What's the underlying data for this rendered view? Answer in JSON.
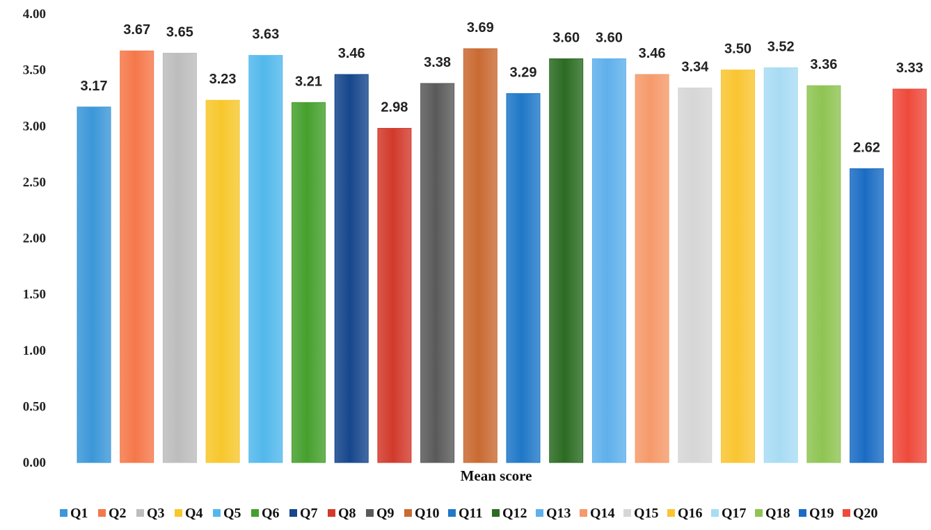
{
  "chart_data": {
    "type": "bar",
    "xlabel": "Mean score",
    "ylabel": "",
    "ylim": [
      0,
      4
    ],
    "yticks": [
      "0.00",
      "0.50",
      "1.00",
      "1.50",
      "2.00",
      "2.50",
      "3.00",
      "3.50",
      "4.00"
    ],
    "grid": false,
    "legend_position": "bottom",
    "categories": [
      "Q1",
      "Q2",
      "Q3",
      "Q4",
      "Q5",
      "Q6",
      "Q7",
      "Q8",
      "Q9",
      "Q10",
      "Q11",
      "Q12",
      "Q13",
      "Q14",
      "Q15",
      "Q16",
      "Q17",
      "Q18",
      "Q19",
      "Q20"
    ],
    "values": [
      3.17,
      3.67,
      3.65,
      3.23,
      3.63,
      3.21,
      3.46,
      2.98,
      3.38,
      3.69,
      3.29,
      3.6,
      3.6,
      3.46,
      3.34,
      3.5,
      3.52,
      3.36,
      2.62,
      3.33
    ],
    "data_labels": [
      "3.17",
      "3.67",
      "3.65",
      "3.23",
      "3.63",
      "3.21",
      "3.46",
      "2.98",
      "3.38",
      "3.69",
      "3.29",
      "3.60",
      "3.60",
      "3.46",
      "3.34",
      "3.50",
      "3.52",
      "3.36",
      "2.62",
      "3.33"
    ],
    "colors": [
      "#3b97d8",
      "#f5784a",
      "#bdbdbd",
      "#f7c72c",
      "#52b8ec",
      "#46a02d",
      "#16468c",
      "#d23a2b",
      "#5a5a5a",
      "#c96a32",
      "#1f78c8",
      "#2b6b22",
      "#5fb0ec",
      "#f59a6a",
      "#d6d6d6",
      "#f9c531",
      "#a8dcf4",
      "#8fc453",
      "#1a6cc4",
      "#ee4a3b"
    ]
  }
}
